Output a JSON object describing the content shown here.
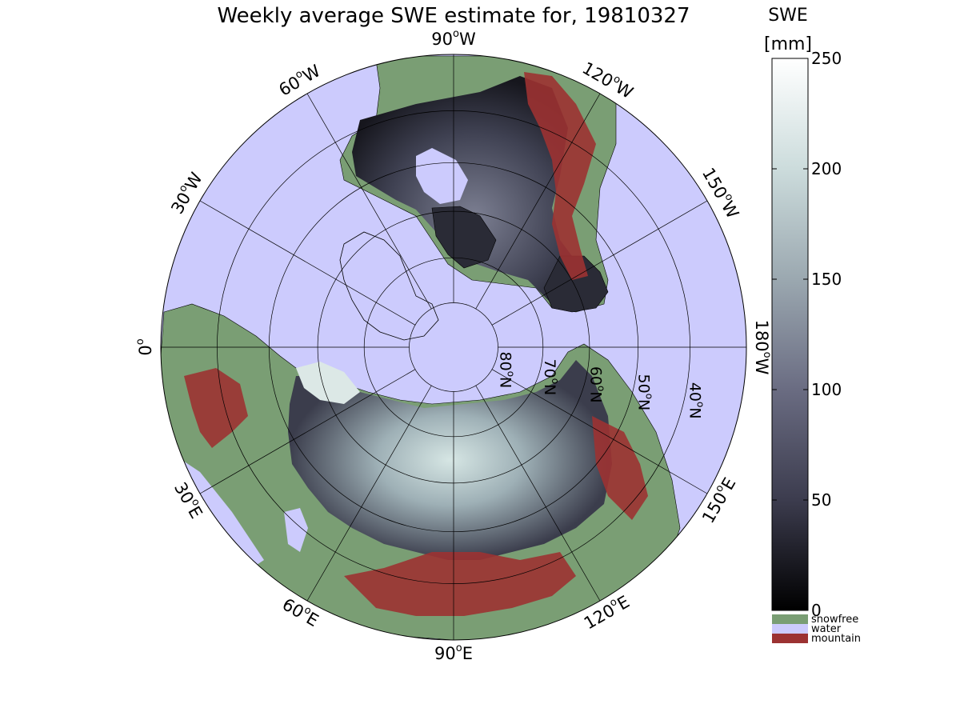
{
  "title": "Weekly average SWE estimate for, 19810327",
  "map": {
    "projection": "north-polar-stereographic",
    "center": "North Pole",
    "colors": {
      "water": "#cccbfd",
      "snowfree": "#7a9e74",
      "mountain": "#9c3232",
      "coastline": "#000000",
      "grid": "#000000"
    },
    "longitude_labels": [
      {
        "text": "90°W",
        "base": "90",
        "sup": "o",
        "hemi": "W",
        "lon": -90
      },
      {
        "text": "120°W",
        "base": "120",
        "sup": "o",
        "hemi": "W",
        "lon": -120
      },
      {
        "text": "150°W",
        "base": "150",
        "sup": "o",
        "hemi": "W",
        "lon": -150
      },
      {
        "text": "180°W",
        "base": "180",
        "sup": "o",
        "hemi": "W",
        "lon": 180
      },
      {
        "text": "150°E",
        "base": "150",
        "sup": "o",
        "hemi": "E",
        "lon": 150
      },
      {
        "text": "120°E",
        "base": "120",
        "sup": "o",
        "hemi": "E",
        "lon": 120
      },
      {
        "text": "90°E",
        "base": "90",
        "sup": "o",
        "hemi": "E",
        "lon": 90
      },
      {
        "text": "60°E",
        "base": "60",
        "sup": "o",
        "hemi": "E",
        "lon": 60
      },
      {
        "text": "30°E",
        "base": "30",
        "sup": "o",
        "hemi": "E",
        "lon": 30
      },
      {
        "text": "0°",
        "base": "0",
        "sup": "o",
        "hemi": "",
        "lon": 0
      },
      {
        "text": "30°W",
        "base": "30",
        "sup": "o",
        "hemi": "W",
        "lon": -30
      },
      {
        "text": "60°W",
        "base": "60",
        "sup": "o",
        "hemi": "W",
        "lon": -60
      }
    ],
    "latitude_labels": [
      {
        "text": "80°N",
        "base": "80",
        "sup": "o",
        "hemi": "N",
        "lat": 80
      },
      {
        "text": "70°N",
        "base": "70",
        "sup": "o",
        "hemi": "N",
        "lat": 70
      },
      {
        "text": "60°N",
        "base": "60",
        "sup": "o",
        "hemi": "N",
        "lat": 60
      },
      {
        "text": "50°N",
        "base": "50",
        "sup": "o",
        "hemi": "N",
        "lat": 50
      },
      {
        "text": "40°N",
        "base": "40",
        "sup": "o",
        "hemi": "N",
        "lat": 40
      }
    ],
    "latitude_circles": [
      80,
      70,
      60,
      50,
      40
    ],
    "outer_latitude": 30
  },
  "colorbar": {
    "label_line1": "SWE",
    "label_line2": "[mm]",
    "min": 0,
    "max": 250,
    "ticks": [
      "0",
      "50",
      "100",
      "150",
      "200",
      "250"
    ],
    "tick_values": [
      0,
      50,
      100,
      150,
      200,
      250
    ],
    "gradient_colors": [
      "#000000",
      "#3c3c4e",
      "#6a6c82",
      "#9ba8b0",
      "#ccdcdc",
      "#ffffff"
    ],
    "legend": [
      {
        "label": "snowfree",
        "color": "#7a9e74"
      },
      {
        "label": "water",
        "color": "#cccbfd"
      },
      {
        "label": "mountain",
        "color": "#9c3232"
      }
    ]
  }
}
